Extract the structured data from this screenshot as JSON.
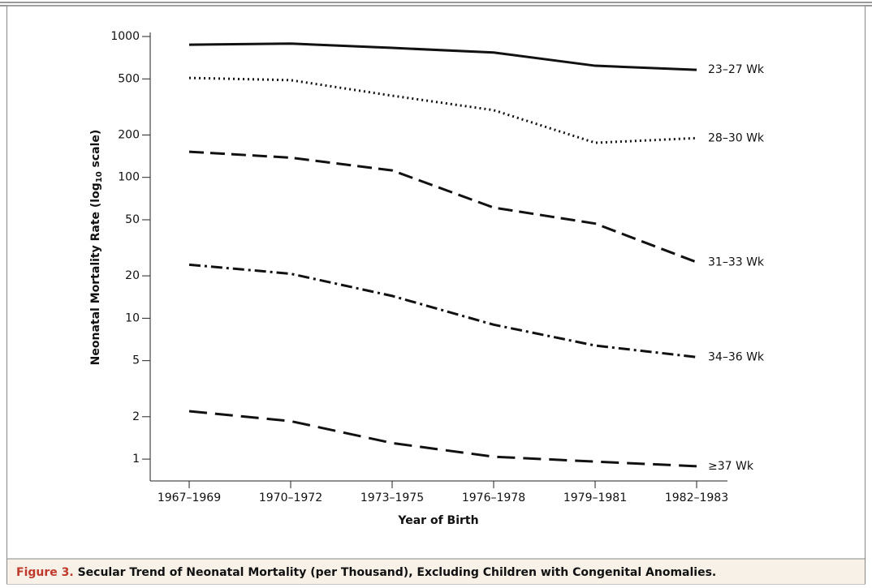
{
  "chart_data": {
    "type": "line",
    "ylabel": [
      "Neonatal Mortality Rate (log",
      "10",
      " scale)"
    ],
    "xlabel": "Year of Birth",
    "categories": [
      "1967–1969",
      "1970–1972",
      "1973–1975",
      "1976–1978",
      "1979–1981",
      "1982–1983"
    ],
    "log_y": true,
    "ylim": [
      0.7,
      1000
    ],
    "yticks": [
      1,
      2,
      5,
      10,
      20,
      50,
      100,
      200,
      500,
      1000
    ],
    "series": [
      {
        "name": "23–27 Wk",
        "color": "#111111",
        "dash": "solid",
        "values": [
          875,
          890,
          830,
          770,
          620,
          580
        ]
      },
      {
        "name": "28–30 Wk",
        "color": "#111111",
        "dash": "dotted",
        "values": [
          508,
          490,
          380,
          300,
          176,
          190
        ]
      },
      {
        "name": "31–33 Wk",
        "color": "#111111",
        "dash": "dashed",
        "values": [
          152,
          138,
          112,
          61,
          47,
          25
        ]
      },
      {
        "name": "34–36 Wk",
        "color": "#111111",
        "dash": "dashdot",
        "values": [
          24,
          20.7,
          14.4,
          9,
          6.4,
          5.3
        ]
      },
      {
        "name": "≥37 Wk",
        "color": "#111111",
        "dash": "longdash",
        "values": [
          2.19,
          1.86,
          1.3,
          1.04,
          0.96,
          0.89
        ]
      }
    ],
    "caption": {
      "label": "Figure 3.",
      "text": "Secular Trend of Neonatal Mortality (per Thousand), Excluding Children with Congenital Anomalies."
    }
  }
}
